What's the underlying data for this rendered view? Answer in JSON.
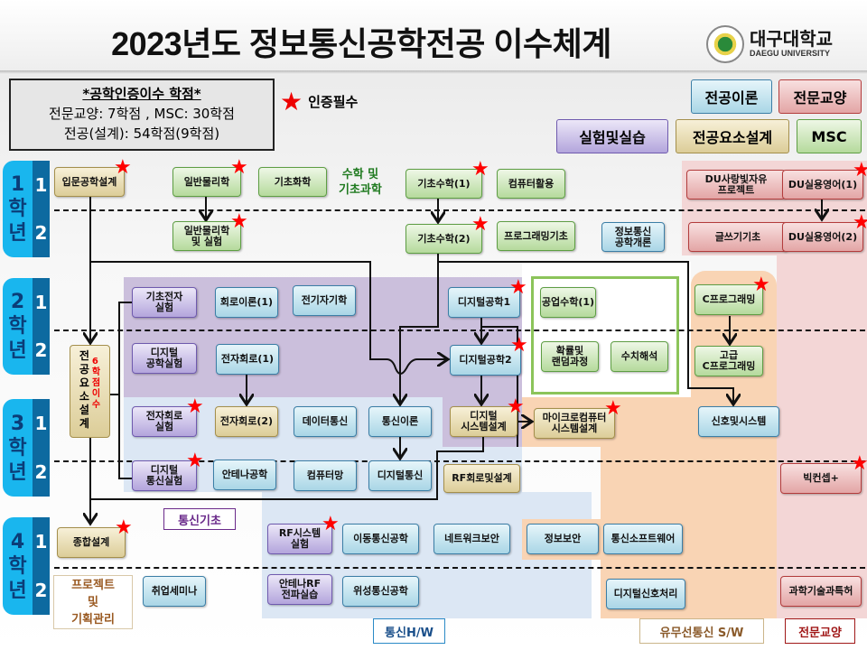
{
  "title": "2023년도 정보통신공학전공 이수체계",
  "logo": {
    "name_ko": "대구대학교",
    "name_en": "DAEGU UNIVERSITY"
  },
  "credits_box": {
    "heading": "*공학인증이수 학점*",
    "line1": "전문교양: 7학점 , MSC: 30학점",
    "line2": "전공(설계): 54학점(9학점)"
  },
  "star_legend": {
    "icon": "red-star-icon",
    "label": "인증필수"
  },
  "legend": {
    "theory": "전공이론",
    "liberal": "전문교양",
    "lab": "실험및실습",
    "design": "전공요소설계",
    "msc": "MSC"
  },
  "colors": {
    "theory": "#a9d6e6",
    "msc": "#b5da9c",
    "liberal": "#e3a5a5",
    "lab": "#b3a5dc",
    "design": "#dccd98",
    "star": "#ff0000",
    "year_tab": "#19b6ee",
    "semester_tab": "#0d6aa0"
  },
  "years": [
    {
      "year": "1",
      "suffix": "학년",
      "semesters": [
        "1",
        "2"
      ]
    },
    {
      "year": "2",
      "suffix": "학년",
      "semesters": [
        "1",
        "2"
      ]
    },
    {
      "year": "3",
      "suffix": "학년",
      "semesters": [
        "1",
        "2"
      ]
    },
    {
      "year": "4",
      "suffix": "학년",
      "semesters": [
        "1",
        "2"
      ]
    }
  ],
  "group_labels": {
    "math_science": "수학 및\n기초과학",
    "comm_basics": "통신기초",
    "comm_hw": "통신H/W",
    "sw": "유무선통신 S/W",
    "liberal": "전문교양",
    "project": "프로젝트\n및\n기획관리",
    "design_vertical": "전\n공\n요\n소\n설\n계",
    "design_credits": "6\n학\n점\n이\n수"
  },
  "courses": [
    {
      "name": "입문공학설계",
      "category": "design",
      "required": true
    },
    {
      "name": "일반물리학",
      "category": "msc",
      "required": true
    },
    {
      "name": "기초화학",
      "category": "msc",
      "required": false
    },
    {
      "name": "기초수학(1)",
      "category": "msc",
      "required": true
    },
    {
      "name": "컴퓨터활용",
      "category": "msc",
      "required": false
    },
    {
      "name": "DU사랑빛자유\n프로젝트",
      "category": "liberal",
      "required": false
    },
    {
      "name": "DU실용영어(1)",
      "category": "liberal",
      "required": true
    },
    {
      "name": "일반물리학\n및 실험",
      "category": "msc",
      "required": true
    },
    {
      "name": "기초수학(2)",
      "category": "msc",
      "required": true
    },
    {
      "name": "프로그래밍기초",
      "category": "msc",
      "required": false
    },
    {
      "name": "정보통신\n공학개론",
      "category": "theory",
      "required": false
    },
    {
      "name": "글쓰기기초",
      "category": "liberal",
      "required": false
    },
    {
      "name": "DU실용영어(2)",
      "category": "liberal",
      "required": true
    },
    {
      "name": "기초전자\n실험",
      "category": "lab",
      "required": false
    },
    {
      "name": "회로이론(1)",
      "category": "theory",
      "required": false
    },
    {
      "name": "전기자기학",
      "category": "theory",
      "required": false
    },
    {
      "name": "디지털공학1",
      "category": "theory",
      "required": true
    },
    {
      "name": "공업수학(1)",
      "category": "msc",
      "required": false
    },
    {
      "name": "C프로그래밍",
      "category": "msc",
      "required": true
    },
    {
      "name": "디지털\n공학실험",
      "category": "lab",
      "required": false
    },
    {
      "name": "전자회로(1)",
      "category": "theory",
      "required": false
    },
    {
      "name": "디지털공학2",
      "category": "theory",
      "required": true
    },
    {
      "name": "확률및\n랜덤과정",
      "category": "msc",
      "required": false
    },
    {
      "name": "수치해석",
      "category": "msc",
      "required": false
    },
    {
      "name": "고급\nC프로그래밍",
      "category": "msc",
      "required": false
    },
    {
      "name": "전자회로\n실험",
      "category": "lab",
      "required": true
    },
    {
      "name": "전자회로(2)",
      "category": "design",
      "required": false
    },
    {
      "name": "데이터통신",
      "category": "theory",
      "required": false
    },
    {
      "name": "통신이론",
      "category": "theory",
      "required": false
    },
    {
      "name": "디지털\n시스템설계",
      "category": "design",
      "required": true
    },
    {
      "name": "마이크로컴퓨터\n시스템설계",
      "category": "design",
      "required": true
    },
    {
      "name": "신호및시스템",
      "category": "theory",
      "required": false
    },
    {
      "name": "디지털\n통신실험",
      "category": "lab",
      "required": true
    },
    {
      "name": "안테나공학",
      "category": "theory",
      "required": false
    },
    {
      "name": "컴퓨터망",
      "category": "theory",
      "required": false
    },
    {
      "name": "디지털통신",
      "category": "theory",
      "required": false
    },
    {
      "name": "RF회로및설계",
      "category": "design",
      "required": false
    },
    {
      "name": "빅컨셉+",
      "category": "liberal",
      "required": true
    },
    {
      "name": "종합설계",
      "category": "design",
      "required": true
    },
    {
      "name": "RF시스템\n실험",
      "category": "lab",
      "required": true
    },
    {
      "name": "이동통신공학",
      "category": "theory",
      "required": false
    },
    {
      "name": "네트워크보안",
      "category": "theory",
      "required": false
    },
    {
      "name": "정보보안",
      "category": "theory",
      "required": false
    },
    {
      "name": "통신소프트웨어",
      "category": "theory",
      "required": false
    },
    {
      "name": "취업세미나",
      "category": "theory",
      "required": false
    },
    {
      "name": "안테나RF\n전파실습",
      "category": "lab",
      "required": false
    },
    {
      "name": "위성통신공학",
      "category": "theory",
      "required": false
    },
    {
      "name": "디지털신호처리",
      "category": "theory",
      "required": false
    },
    {
      "name": "과학기술과특허",
      "category": "liberal",
      "required": false
    }
  ]
}
